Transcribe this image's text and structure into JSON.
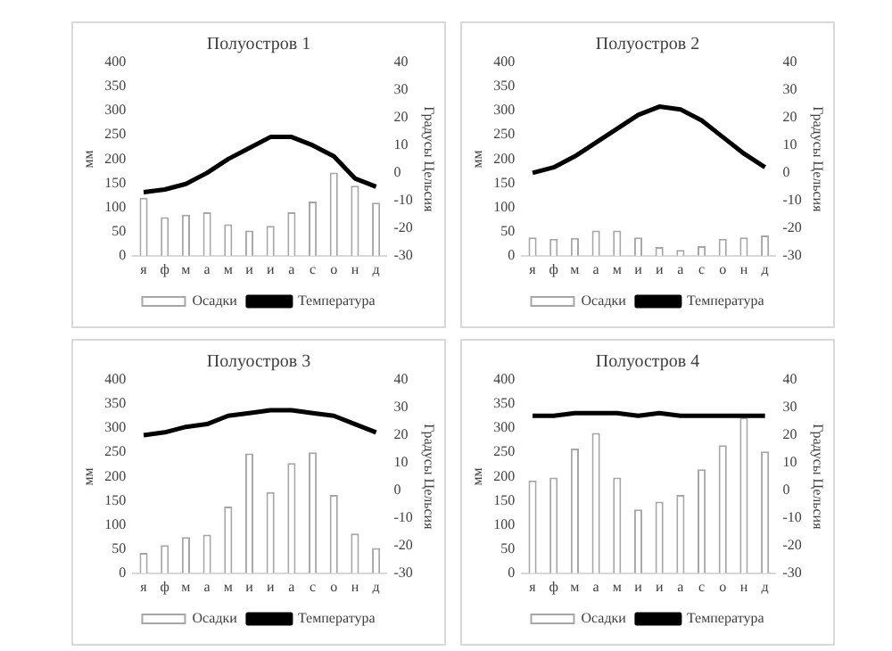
{
  "chart_data": [
    {
      "type": "bar",
      "title": "Полуостров 1",
      "ylabel": "мм",
      "y2label": "Градусы Цельсия",
      "categories": [
        "я",
        "ф",
        "м",
        "а",
        "м",
        "и",
        "и",
        "а",
        "с",
        "о",
        "н",
        "д"
      ],
      "series": [
        {
          "name": "Осадки",
          "color": "#a6a6a6",
          "values": [
            120,
            80,
            85,
            90,
            65,
            52,
            62,
            90,
            112,
            172,
            145,
            110
          ]
        },
        {
          "name": "Температура",
          "type": "line",
          "axis": "y2",
          "color": "#000000",
          "values": [
            -7,
            -6,
            -4,
            0,
            5,
            9,
            13,
            13,
            10,
            6,
            -2,
            -5
          ]
        }
      ],
      "ylim": [
        0,
        400
      ],
      "yticks": [
        0,
        50,
        100,
        150,
        200,
        250,
        300,
        350,
        400
      ],
      "y2lim": [
        -30,
        40
      ],
      "y2ticks": [
        -30,
        -20,
        -10,
        0,
        10,
        20,
        30,
        40
      ],
      "legend": "bottom",
      "marker": "none",
      "grid": false
    },
    {
      "type": "bar",
      "title": "Полуостров 2",
      "ylabel": "мм",
      "y2label": "Градусы Цельсия",
      "categories": [
        "я",
        "ф",
        "м",
        "а",
        "м",
        "и",
        "и",
        "а",
        "с",
        "о",
        "н",
        "д"
      ],
      "series": [
        {
          "name": "Осадки",
          "color": "#a6a6a6",
          "values": [
            38,
            35,
            37,
            52,
            52,
            38,
            18,
            12,
            20,
            35,
            38,
            42
          ]
        },
        {
          "name": "Температура",
          "type": "line",
          "axis": "y2",
          "color": "#000000",
          "values": [
            0,
            2,
            6,
            11,
            16,
            21,
            24,
            23,
            19,
            13,
            7,
            2
          ]
        }
      ],
      "ylim": [
        0,
        400
      ],
      "yticks": [
        0,
        50,
        100,
        150,
        200,
        250,
        300,
        350,
        400
      ],
      "y2lim": [
        -30,
        40
      ],
      "y2ticks": [
        -30,
        -20,
        -10,
        0,
        10,
        20,
        30,
        40
      ],
      "legend": "bottom",
      "marker": "none",
      "grid": false
    },
    {
      "type": "bar",
      "title": "Полуостров 3",
      "ylabel": "мм",
      "y2label": "Градусы Цельсия",
      "categories": [
        "я",
        "ф",
        "м",
        "а",
        "м",
        "и",
        "и",
        "а",
        "с",
        "о",
        "н",
        "д"
      ],
      "series": [
        {
          "name": "Осадки",
          "color": "#a6a6a6",
          "values": [
            42,
            58,
            75,
            80,
            138,
            248,
            168,
            228,
            250,
            162,
            82,
            52
          ]
        },
        {
          "name": "Температура",
          "type": "line",
          "axis": "y2",
          "color": "#000000",
          "values": [
            20,
            21,
            23,
            24,
            27,
            28,
            29,
            29,
            28,
            27,
            24,
            21
          ]
        }
      ],
      "ylim": [
        0,
        400
      ],
      "yticks": [
        0,
        50,
        100,
        150,
        200,
        250,
        300,
        350,
        400
      ],
      "y2lim": [
        -30,
        40
      ],
      "y2ticks": [
        -30,
        -20,
        -10,
        0,
        10,
        20,
        30,
        40
      ],
      "legend": "bottom",
      "marker": "none",
      "grid": false
    },
    {
      "type": "bar",
      "title": "Полуостров 4",
      "ylabel": "мм",
      "y2label": "Градусы Цельсия",
      "categories": [
        "я",
        "ф",
        "м",
        "а",
        "м",
        "и",
        "и",
        "а",
        "с",
        "о",
        "н",
        "д"
      ],
      "series": [
        {
          "name": "Осадки",
          "color": "#a6a6a6",
          "values": [
            192,
            198,
            258,
            290,
            198,
            132,
            148,
            162,
            215,
            265,
            322,
            252
          ]
        },
        {
          "name": "Температура",
          "type": "line",
          "axis": "y2",
          "color": "#000000",
          "values": [
            27,
            27,
            28,
            28,
            28,
            27,
            28,
            27,
            27,
            27,
            27,
            27
          ]
        }
      ],
      "ylim": [
        0,
        400
      ],
      "yticks": [
        0,
        50,
        100,
        150,
        200,
        250,
        300,
        350,
        400
      ],
      "y2lim": [
        -30,
        40
      ],
      "y2ticks": [
        -30,
        -20,
        -10,
        0,
        10,
        20,
        30,
        40
      ],
      "legend": "bottom",
      "marker": "none",
      "grid": false
    }
  ]
}
